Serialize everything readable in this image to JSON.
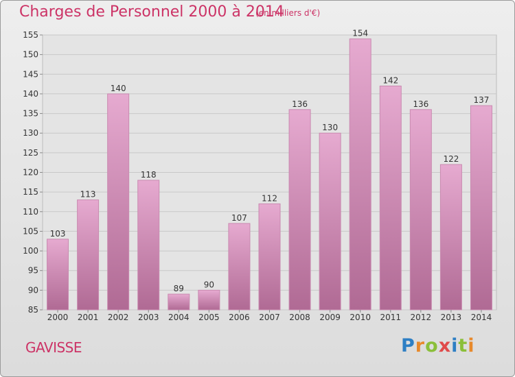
{
  "title": "Charges de Personnel 2000 à 2014",
  "subtitle": "(en milliers d'€)",
  "commune": "GAVISSE",
  "logo": {
    "letters": [
      "P",
      "r",
      "o",
      "x",
      "i",
      "t",
      "i"
    ],
    "colors": [
      "#2e7fc4",
      "#e8892b",
      "#8bbf3a",
      "#e04a4a",
      "#2e7fc4",
      "#8bbf3a",
      "#e8892b"
    ]
  },
  "colors": {
    "title": "#cc3366",
    "bar_top": "#e6aad0",
    "bar_bottom": "#b06a94",
    "grid": "#c8c8c8",
    "axis_text": "#333333"
  },
  "chart_data": {
    "type": "bar",
    "categories": [
      "2000",
      "2001",
      "2002",
      "2003",
      "2004",
      "2005",
      "2006",
      "2007",
      "2008",
      "2009",
      "2010",
      "2011",
      "2012",
      "2013",
      "2014"
    ],
    "values": [
      103,
      113,
      140,
      118,
      89,
      90,
      107,
      112,
      136,
      130,
      154,
      142,
      136,
      122,
      137
    ],
    "ylim": [
      85,
      155
    ],
    "yticks": [
      85,
      90,
      95,
      100,
      105,
      110,
      115,
      120,
      125,
      130,
      135,
      140,
      145,
      150,
      155
    ],
    "grid": true,
    "data_labels": true
  }
}
